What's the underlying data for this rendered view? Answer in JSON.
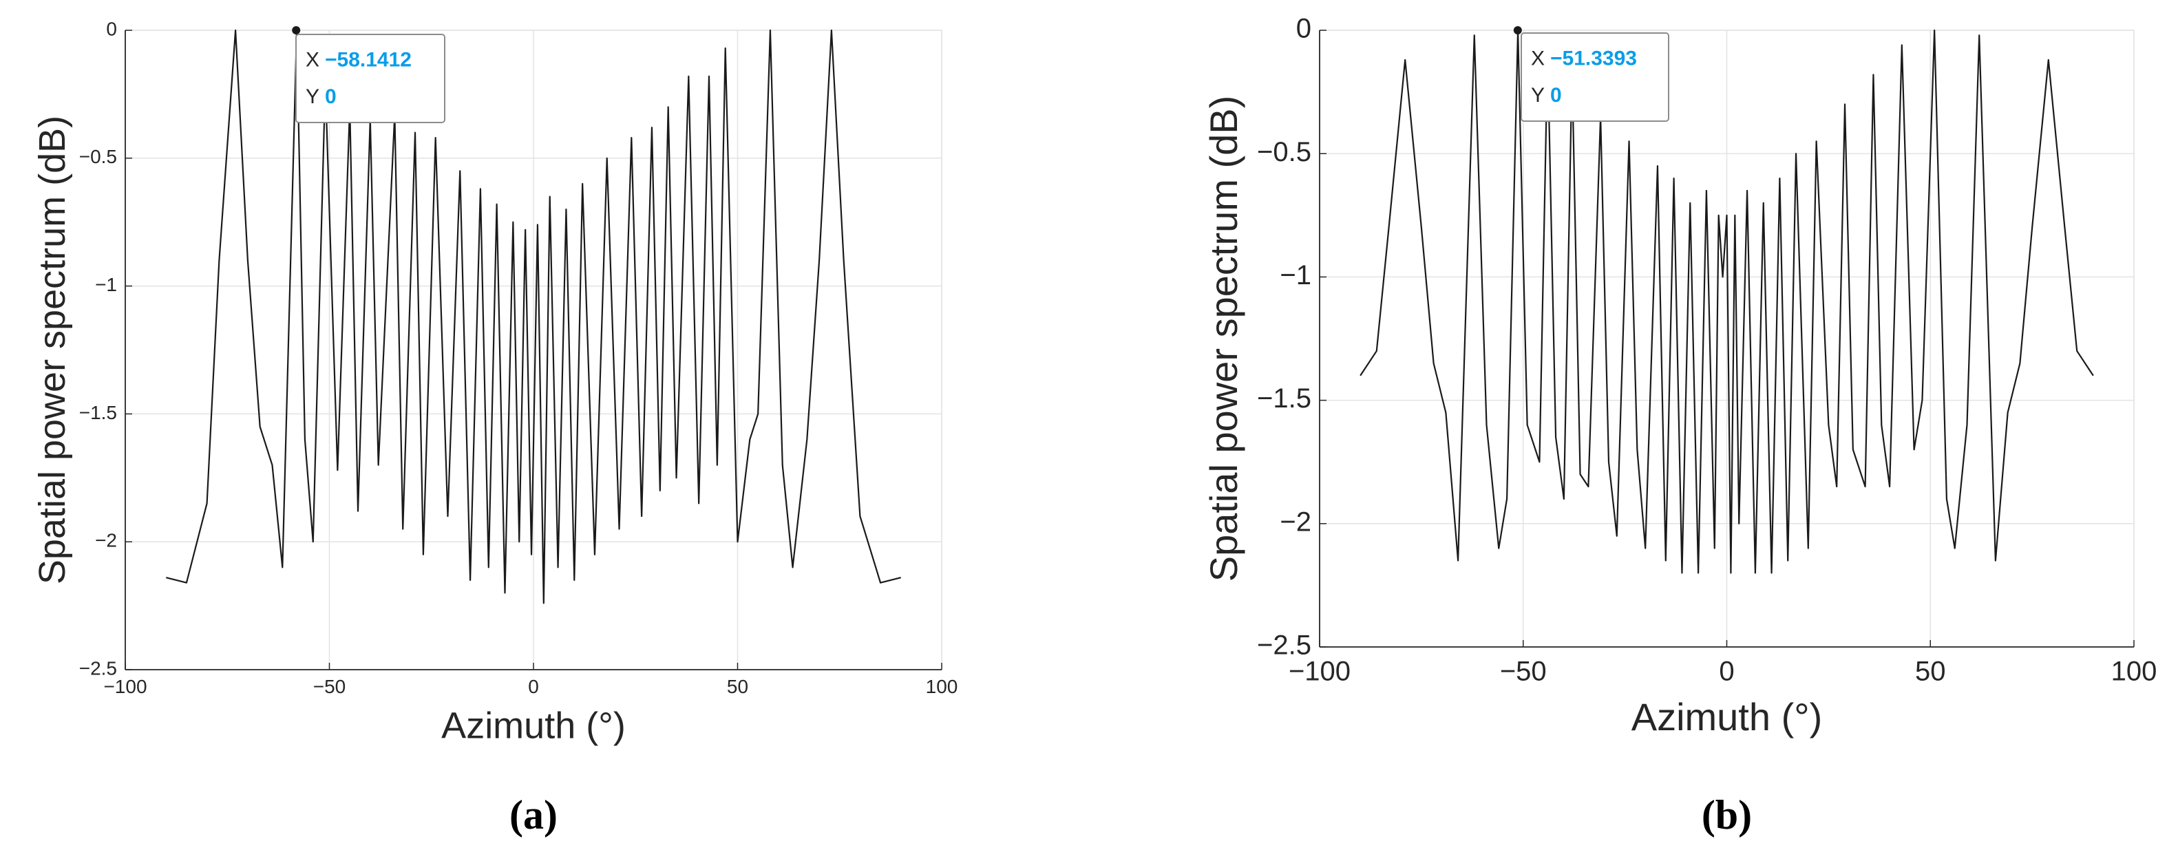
{
  "chart_data": [
    {
      "type": "line",
      "caption": "(a)",
      "xlabel": "Azimuth (°)",
      "ylabel": "Spatial power spectrum (dB)",
      "color": "#1a1a1a",
      "grid": true,
      "xlim": [
        -100,
        100
      ],
      "ylim": [
        -2.5,
        0
      ],
      "xticks": [
        {
          "value": -100,
          "label": "−100"
        },
        {
          "value": -50,
          "label": "−50"
        },
        0,
        50,
        100
      ],
      "yticks": [
        {
          "value": -2.5,
          "label": "−2.5"
        },
        {
          "value": -2,
          "label": "−2"
        },
        {
          "value": -1.5,
          "label": "−1.5"
        },
        {
          "value": -1,
          "label": "−1"
        },
        {
          "value": -0.5,
          "label": "−0.5"
        },
        0
      ],
      "x": [
        -90,
        -85,
        -80,
        -77,
        -73,
        -70,
        -67,
        -64,
        -61.5,
        -58,
        -56,
        -54,
        -51,
        -48,
        -45,
        -43,
        -40,
        -38,
        -34,
        -32,
        -29,
        -27,
        -24,
        -21,
        -18,
        -15.5,
        -13,
        -11,
        -9,
        -7,
        -5,
        -3.5,
        -2,
        -0.5,
        1,
        2.5,
        4,
        6,
        8,
        10,
        12,
        15,
        18,
        21,
        24,
        26.5,
        29,
        31,
        33,
        35,
        38,
        40.5,
        43,
        45,
        47,
        50,
        53,
        55,
        58,
        61,
        63.5,
        67,
        70,
        73,
        76,
        80,
        85,
        90
      ],
      "values": [
        -2.14,
        -2.16,
        -1.85,
        -0.9,
        0,
        -0.9,
        -1.55,
        -1.7,
        -2.1,
        0,
        -1.6,
        -2.0,
        -0.2,
        -1.72,
        -0.3,
        -1.88,
        -0.35,
        -1.7,
        -0.33,
        -1.95,
        -0.4,
        -2.05,
        -0.42,
        -1.9,
        -0.55,
        -2.15,
        -0.62,
        -2.1,
        -0.68,
        -2.2,
        -0.75,
        -2.0,
        -0.78,
        -2.05,
        -0.76,
        -2.24,
        -0.65,
        -2.1,
        -0.7,
        -2.15,
        -0.6,
        -2.05,
        -0.5,
        -1.95,
        -0.42,
        -1.9,
        -0.38,
        -1.8,
        -0.3,
        -1.75,
        -0.18,
        -1.85,
        -0.18,
        -1.7,
        -0.07,
        -2.0,
        -1.6,
        -1.5,
        0,
        -1.7,
        -2.1,
        -1.6,
        -0.9,
        0,
        -0.9,
        -1.9,
        -2.16,
        -2.14
      ],
      "datatip": {
        "x_name": "X",
        "x": {
          "value": -58.1412,
          "label": "−58.1412"
        },
        "y_name": "Y",
        "y": 0
      }
    },
    {
      "type": "line",
      "caption": "(b)",
      "xlabel": "Azimuth (°)",
      "ylabel": "Spatial power spectrum (dB)",
      "color": "#1a1a1a",
      "grid": true,
      "xlim": [
        -100,
        100
      ],
      "ylim": [
        -2.5,
        0
      ],
      "xticks": [
        {
          "value": -100,
          "label": "−100"
        },
        {
          "value": -50,
          "label": "−50"
        },
        0,
        50,
        100
      ],
      "yticks": [
        {
          "value": -2.5,
          "label": "−2.5"
        },
        {
          "value": -2,
          "label": "−2"
        },
        {
          "value": -1.5,
          "label": "−1.5"
        },
        {
          "value": -1,
          "label": "−1"
        },
        {
          "value": -0.5,
          "label": "−0.5"
        },
        0
      ],
      "x": [
        -90,
        -86,
        -83,
        -79,
        -75,
        -72,
        -69,
        -66,
        -62,
        -59,
        -56,
        -54,
        -51.3,
        -49,
        -46,
        -44,
        -42,
        -40,
        -38,
        -36,
        -34,
        -31,
        -29,
        -27,
        -24,
        -22,
        -20,
        -17,
        -15,
        -13,
        -11,
        -9,
        -7,
        -5,
        -3,
        -2,
        -1,
        0,
        1,
        2,
        3,
        5,
        7,
        9,
        11,
        13,
        15,
        17,
        20,
        22,
        25,
        27,
        29,
        31,
        34,
        36,
        38,
        40,
        43,
        46,
        48,
        51,
        54,
        56,
        59,
        62,
        66,
        69,
        72,
        75,
        79,
        83,
        86,
        90
      ],
      "values": [
        -1.4,
        -1.3,
        -0.8,
        -0.12,
        -0.8,
        -1.35,
        -1.55,
        -2.15,
        -0.02,
        -1.6,
        -2.1,
        -1.9,
        0,
        -1.6,
        -1.75,
        -0.08,
        -1.65,
        -1.9,
        -0.15,
        -1.8,
        -1.85,
        -0.35,
        -1.75,
        -2.05,
        -0.45,
        -1.7,
        -2.1,
        -0.55,
        -2.15,
        -0.6,
        -2.2,
        -0.7,
        -2.2,
        -0.65,
        -2.1,
        -0.75,
        -1.0,
        -0.75,
        -2.2,
        -0.75,
        -2.0,
        -0.65,
        -2.2,
        -0.7,
        -2.2,
        -0.6,
        -2.15,
        -0.5,
        -2.1,
        -0.45,
        -1.6,
        -1.85,
        -0.3,
        -1.7,
        -1.85,
        -0.18,
        -1.6,
        -1.85,
        -0.06,
        -1.7,
        -1.5,
        0,
        -1.9,
        -2.1,
        -1.6,
        -0.02,
        -2.15,
        -1.55,
        -1.35,
        -0.8,
        -0.12,
        -0.8,
        -1.3,
        -1.4
      ],
      "datatip": {
        "x_name": "X",
        "x": {
          "value": -51.3393,
          "label": "−51.3393"
        },
        "y_name": "Y",
        "y": 0
      }
    }
  ]
}
